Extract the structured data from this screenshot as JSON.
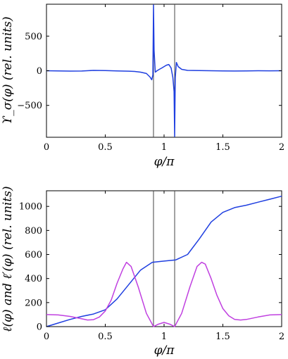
{
  "chart_data": [
    {
      "type": "line",
      "xlabel": "φ/π",
      "ylabel": "ϒ_σ(φ)  (rel. units)",
      "xlim": [
        0,
        2
      ],
      "ylim": [
        -960,
        960
      ],
      "xticks": [
        "0",
        "0.5",
        "1",
        "1.5",
        "2"
      ],
      "yticks": [
        "−500",
        "0",
        "500"
      ],
      "ytick_values": [
        -500,
        0,
        500
      ],
      "grid": false,
      "vlines": [
        0.91,
        1.09
      ],
      "series": [
        {
          "color": "#1f3fe0",
          "x": [
            0,
            0.1,
            0.2,
            0.3,
            0.4,
            0.5,
            0.6,
            0.7,
            0.75,
            0.8,
            0.85,
            0.88,
            0.895,
            0.905,
            0.91,
            0.915,
            0.925,
            0.94,
            0.96,
            0.98,
            1.0,
            1.02,
            1.04,
            1.06,
            1.075,
            1.085,
            1.09,
            1.095,
            1.105,
            1.12,
            1.15,
            1.2,
            1.3,
            1.4,
            1.5,
            1.6,
            1.7,
            1.8,
            1.9,
            2.0
          ],
          "y": [
            0,
            -2,
            -5,
            -4,
            5,
            3,
            -3,
            -6,
            -10,
            -20,
            -40,
            -90,
            -130,
            -60,
            950,
            300,
            -20,
            0,
            20,
            40,
            60,
            80,
            90,
            40,
            -100,
            -300,
            -950,
            -100,
            120,
            60,
            20,
            5,
            2,
            0,
            -3,
            -4,
            -2,
            0,
            -1,
            0
          ]
        }
      ]
    },
    {
      "type": "line",
      "xlabel": "φ/π",
      "ylabel": "ℓ(φ) and ℓ′(φ) (rel. units)",
      "xlim": [
        0,
        2
      ],
      "ylim": [
        0,
        1130
      ],
      "xticks": [
        "0",
        "0.5",
        "1",
        "1.5",
        "2"
      ],
      "yticks": [
        "0",
        "200",
        "400",
        "600",
        "800",
        "1000"
      ],
      "ytick_values": [
        0,
        200,
        400,
        600,
        800,
        1000
      ],
      "grid": false,
      "vlines": [
        0.91,
        1.09
      ],
      "series": [
        {
          "color": "#1f3fe0",
          "x": [
            0,
            0.1,
            0.2,
            0.3,
            0.4,
            0.5,
            0.6,
            0.7,
            0.8,
            0.9,
            1.0,
            1.1,
            1.2,
            1.3,
            1.4,
            1.5,
            1.6,
            1.7,
            1.8,
            1.9,
            2.0
          ],
          "y": [
            0,
            30,
            60,
            85,
            105,
            140,
            230,
            350,
            470,
            535,
            545,
            555,
            600,
            730,
            870,
            950,
            990,
            1010,
            1035,
            1060,
            1085
          ]
        },
        {
          "color": "#c040e0",
          "x": [
            0,
            0.1,
            0.2,
            0.3,
            0.35,
            0.4,
            0.45,
            0.5,
            0.55,
            0.6,
            0.65,
            0.68,
            0.72,
            0.78,
            0.85,
            0.91,
            0.95,
            1.0,
            1.05,
            1.09,
            1.15,
            1.22,
            1.28,
            1.32,
            1.35,
            1.4,
            1.45,
            1.5,
            1.55,
            1.6,
            1.65,
            1.7,
            1.8,
            1.9,
            2.0
          ],
          "y": [
            100,
            97,
            85,
            65,
            55,
            58,
            80,
            130,
            220,
            360,
            480,
            535,
            500,
            330,
            110,
            0,
            20,
            35,
            20,
            0,
            110,
            330,
            500,
            535,
            520,
            400,
            260,
            150,
            90,
            60,
            55,
            60,
            80,
            97,
            100
          ]
        }
      ]
    }
  ]
}
